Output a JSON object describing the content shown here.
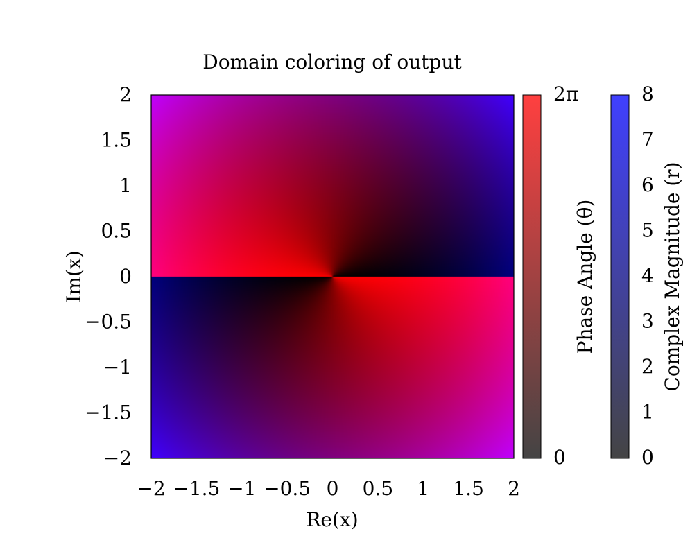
{
  "chart_data": {
    "type": "heatmap",
    "title": "Domain coloring of output",
    "xlabel": "Re(x)",
    "ylabel": "Im(x)",
    "xlim": [
      -2,
      2
    ],
    "ylim": [
      -2,
      2
    ],
    "x_ticks": [
      -2,
      -1.5,
      -1,
      -0.5,
      0,
      0.5,
      1,
      1.5,
      2
    ],
    "x_tick_labels": [
      "−2",
      "−1.5",
      "−1",
      "−0.5",
      "0",
      "0.5",
      "1",
      "1.5",
      "2"
    ],
    "y_ticks": [
      2,
      1.5,
      1,
      0.5,
      0,
      -0.5,
      -1,
      -1.5,
      -2
    ],
    "y_tick_labels": [
      "2",
      "1.5",
      "1",
      "0.5",
      "0",
      "−0.5",
      "−1",
      "−1.5",
      "−2"
    ],
    "grid": false,
    "colorbars": [
      {
        "name": "phase",
        "label": "Phase Angle (θ)",
        "range": [
          0,
          6.2832
        ],
        "tick_labels": [
          "2π",
          "0"
        ],
        "color_low": "#444444",
        "color_high": "#ff4040"
      },
      {
        "name": "magnitude",
        "label": "Complex Magnitude (r)",
        "range": [
          0,
          8
        ],
        "ticks": [
          8,
          7,
          6,
          5,
          4,
          3,
          2,
          1,
          0
        ],
        "tick_labels": [
          "8",
          "7",
          "6",
          "5",
          "4",
          "3",
          "2",
          "1",
          "0"
        ],
        "color_low": "#444444",
        "color_high": "#4040ff"
      }
    ]
  }
}
